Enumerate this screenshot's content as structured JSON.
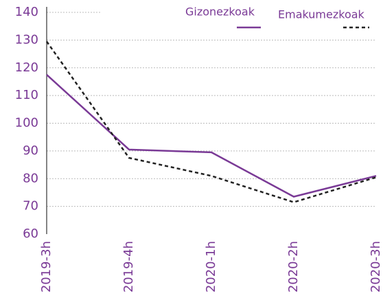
{
  "chart_data": {
    "type": "line",
    "categories": [
      "2019-3h",
      "2019-4h",
      "2020-1h",
      "2020-2h",
      "2020-3h"
    ],
    "series": [
      {
        "name": "Gizonezkoak",
        "color": "#7a3a96",
        "dash": false,
        "values": [
          117.5,
          90.5,
          89.5,
          73.5,
          81
        ]
      },
      {
        "name": "Emakumezkoak",
        "color": "#222222",
        "dash": true,
        "values": [
          129.5,
          87.5,
          81,
          71.5,
          80.5
        ]
      }
    ],
    "ylim": [
      60,
      140
    ],
    "yticks": [
      60,
      70,
      80,
      90,
      100,
      110,
      120,
      130,
      140
    ],
    "grid": true
  }
}
